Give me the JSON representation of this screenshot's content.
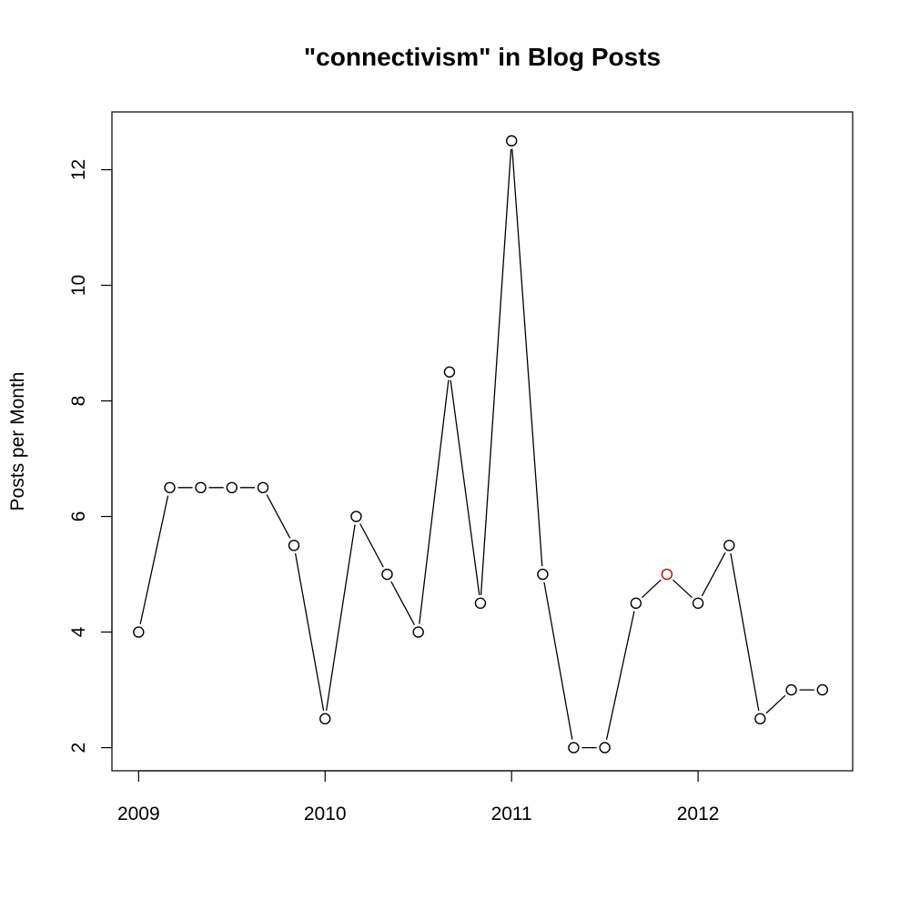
{
  "chart_data": {
    "type": "line",
    "title": "\"connectivism\" in Blog Posts",
    "xlabel": "",
    "ylabel": "Posts per Month",
    "xlim": [
      2008.857,
      2012.829
    ],
    "ylim": [
      1.6,
      13.0
    ],
    "x_ticks": [
      2009,
      2010,
      2011,
      2012
    ],
    "x_tick_labels": [
      "2009",
      "2010",
      "2011",
      "2012"
    ],
    "y_ticks": [
      2,
      4,
      6,
      8,
      10,
      12
    ],
    "y_tick_labels": [
      "2",
      "4",
      "6",
      "8",
      "10",
      "12"
    ],
    "grid": false,
    "legend": "none",
    "line_color": "#000000",
    "marker_color": "#000000",
    "highlight_color": "#cc0000",
    "highlight_index": 17,
    "series": [
      {
        "x": [
          2009.0,
          2009.167,
          2009.333,
          2009.5,
          2009.667,
          2009.833,
          2010.0,
          2010.167,
          2010.333,
          2010.5,
          2010.667,
          2010.833,
          2011.0,
          2011.167,
          2011.333,
          2011.5,
          2011.667,
          2011.833,
          2012.0,
          2012.167,
          2012.333,
          2012.5,
          2012.667
        ],
        "values": [
          4,
          6.5,
          6.5,
          6.5,
          6.5,
          5.5,
          2.5,
          6,
          5,
          4,
          8.5,
          4.5,
          12.5,
          5,
          2,
          2,
          4.5,
          5,
          4.5,
          5.5,
          2.5,
          3,
          3
        ]
      }
    ]
  }
}
